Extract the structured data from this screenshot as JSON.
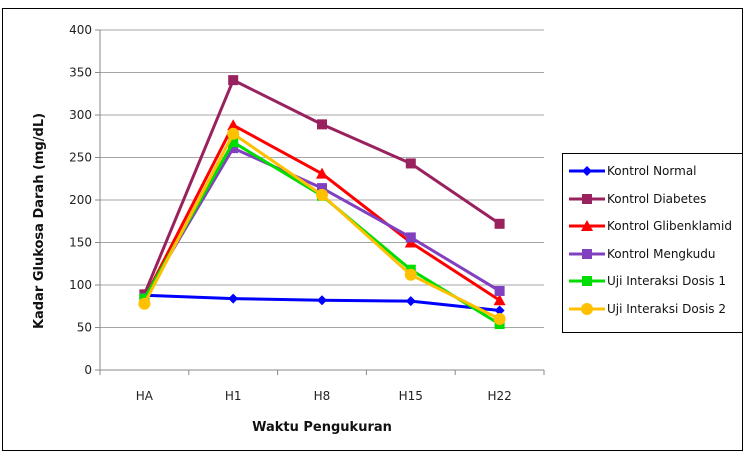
{
  "chart_data": {
    "type": "line",
    "categories": [
      "HA",
      "H1",
      "H8",
      "H15",
      "H22"
    ],
    "xlabel": "Waktu Pengukuran",
    "ylabel": "Kadar Glukosa Darah (mg/dL)",
    "ylim": [
      0,
      400
    ],
    "yticks": [
      "0",
      "50",
      "100",
      "150",
      "200",
      "250",
      "300",
      "350",
      "400"
    ],
    "grid": true,
    "legend_position": "right",
    "series": [
      {
        "name": "Kontrol Normal",
        "color": "#0000ff",
        "marker": "diamond",
        "values": [
          88,
          84,
          82,
          81,
          70
        ]
      },
      {
        "name": "Kontrol Diabetes",
        "color": "#99225e",
        "marker": "square",
        "values": [
          89,
          341,
          289,
          243,
          172
        ]
      },
      {
        "name": "Kontrol Glibenklamid",
        "color": "#ff0000",
        "marker": "triangle",
        "values": [
          84,
          288,
          231,
          150,
          82
        ]
      },
      {
        "name": "Kontrol Mengkudu",
        "color": "#8040c0",
        "marker": "square",
        "values": [
          85,
          261,
          214,
          156,
          93
        ]
      },
      {
        "name": "Uji Interaksi Dosis 1",
        "color": "#00dd00",
        "marker": "square",
        "values": [
          84,
          268,
          205,
          118,
          54
        ]
      },
      {
        "name": "Uji Interaksi Dosis 2",
        "color": "#ffc000",
        "marker": "circle",
        "values": [
          78,
          278,
          206,
          112,
          60
        ]
      }
    ]
  }
}
